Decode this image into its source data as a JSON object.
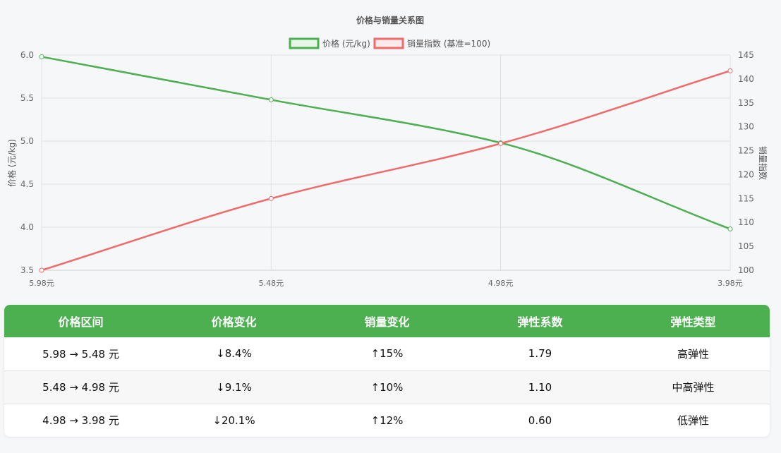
{
  "chart_data": {
    "type": "line",
    "title": "价格与销量关系图",
    "categories": [
      "5.98元",
      "5.48元",
      "4.98元",
      "3.98元"
    ],
    "series": [
      {
        "name": "价格 (元/kg)",
        "axis": "left",
        "color": "#4caf50",
        "values": [
          5.98,
          5.48,
          4.98,
          3.98
        ]
      },
      {
        "name": "销量指数 (基准=100)",
        "axis": "right",
        "color": "#f06a6a",
        "values": [
          100,
          115,
          126.5,
          141.7
        ]
      }
    ],
    "ylabel": "价格 (元/kg)",
    "y2label": "销量指数",
    "ylim": [
      3.5,
      6.0
    ],
    "y2lim": [
      100,
      145
    ],
    "yticks": [
      "6.0",
      "5.5",
      "5.0",
      "4.5",
      "4.0",
      "3.5"
    ],
    "y2ticks": [
      "145",
      "140",
      "135",
      "130",
      "125",
      "120",
      "115",
      "110",
      "105",
      "100"
    ],
    "legend_position": "top",
    "grid": true
  },
  "table": {
    "headers": [
      "价格区间",
      "价格变化",
      "销量变化",
      "弹性系数",
      "弹性类型"
    ],
    "rows": [
      [
        "5.98 → 5.48 元",
        "↓8.4%",
        "↑15%",
        "1.79",
        "高弹性"
      ],
      [
        "5.48 → 4.98 元",
        "↓9.1%",
        "↑10%",
        "1.10",
        "中高弹性"
      ],
      [
        "4.98 → 3.98 元",
        "↓20.1%",
        "↑12%",
        "0.60",
        "低弹性"
      ]
    ]
  }
}
